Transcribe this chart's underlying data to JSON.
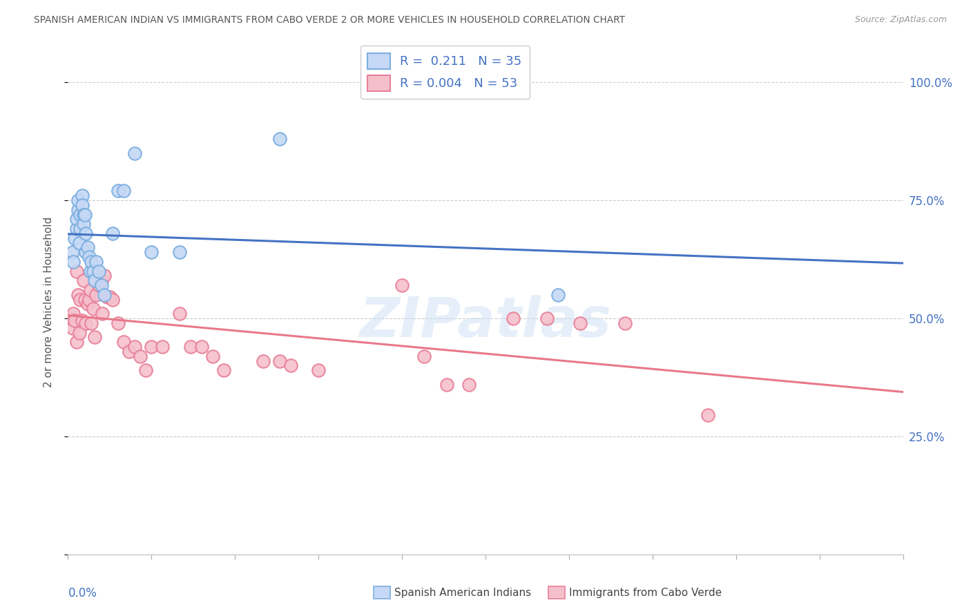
{
  "title": "SPANISH AMERICAN INDIAN VS IMMIGRANTS FROM CABO VERDE 2 OR MORE VEHICLES IN HOUSEHOLD CORRELATION CHART",
  "source": "Source: ZipAtlas.com",
  "ylabel": "2 or more Vehicles in Household",
  "ytick_vals": [
    0.0,
    0.25,
    0.5,
    0.75,
    1.0
  ],
  "ytick_labels": [
    "",
    "25.0%",
    "50.0%",
    "75.0%",
    "100.0%"
  ],
  "xmin": 0.0,
  "xmax": 0.15,
  "ymin": 0.0,
  "ymax": 1.07,
  "blue_R": "0.211",
  "blue_N": "35",
  "pink_R": "0.004",
  "pink_N": "53",
  "blue_label": "Spanish American Indians",
  "pink_label": "Immigrants from Cabo Verde",
  "watermark": "ZIPatlas",
  "blue_scatter_x": [
    0.0008,
    0.001,
    0.0012,
    0.0015,
    0.0015,
    0.0018,
    0.0018,
    0.002,
    0.0022,
    0.0022,
    0.0025,
    0.0025,
    0.0028,
    0.0028,
    0.003,
    0.0032,
    0.0032,
    0.0035,
    0.0038,
    0.004,
    0.0042,
    0.0045,
    0.0048,
    0.005,
    0.0055,
    0.006,
    0.0065,
    0.008,
    0.009,
    0.01,
    0.012,
    0.015,
    0.02,
    0.038,
    0.088
  ],
  "blue_scatter_y": [
    0.64,
    0.62,
    0.67,
    0.69,
    0.71,
    0.73,
    0.75,
    0.66,
    0.72,
    0.69,
    0.76,
    0.74,
    0.72,
    0.7,
    0.72,
    0.68,
    0.64,
    0.65,
    0.63,
    0.6,
    0.62,
    0.6,
    0.58,
    0.62,
    0.6,
    0.57,
    0.55,
    0.68,
    0.77,
    0.77,
    0.85,
    0.64,
    0.64,
    0.88,
    0.55
  ],
  "pink_scatter_x": [
    0.0005,
    0.0008,
    0.001,
    0.0012,
    0.0015,
    0.0015,
    0.0018,
    0.002,
    0.0022,
    0.0025,
    0.0028,
    0.003,
    0.0032,
    0.0035,
    0.0038,
    0.004,
    0.0042,
    0.0045,
    0.0048,
    0.005,
    0.0055,
    0.006,
    0.0062,
    0.0065,
    0.007,
    0.0075,
    0.008,
    0.009,
    0.01,
    0.011,
    0.012,
    0.013,
    0.014,
    0.015,
    0.017,
    0.02,
    0.022,
    0.024,
    0.026,
    0.028,
    0.035,
    0.038,
    0.04,
    0.045,
    0.06,
    0.064,
    0.068,
    0.072,
    0.08,
    0.086,
    0.092,
    0.1,
    0.115
  ],
  "pink_scatter_y": [
    0.5,
    0.48,
    0.51,
    0.495,
    0.45,
    0.6,
    0.55,
    0.47,
    0.54,
    0.495,
    0.58,
    0.54,
    0.49,
    0.53,
    0.54,
    0.56,
    0.49,
    0.52,
    0.46,
    0.55,
    0.57,
    0.58,
    0.51,
    0.59,
    0.545,
    0.545,
    0.54,
    0.49,
    0.45,
    0.43,
    0.44,
    0.42,
    0.39,
    0.44,
    0.44,
    0.51,
    0.44,
    0.44,
    0.42,
    0.39,
    0.41,
    0.41,
    0.4,
    0.39,
    0.57,
    0.42,
    0.36,
    0.36,
    0.5,
    0.5,
    0.49,
    0.49,
    0.295
  ],
  "blue_line_color": "#4472C4",
  "pink_line_color": "#E8788A",
  "blue_dot_face": "#C5D8F5",
  "blue_dot_edge": "#7AAEE0",
  "pink_dot_face": "#F5C0CC",
  "pink_dot_edge": "#E88098",
  "grid_color": "#CCCCCC",
  "title_color": "#555555",
  "right_axis_color": "#4472C4"
}
